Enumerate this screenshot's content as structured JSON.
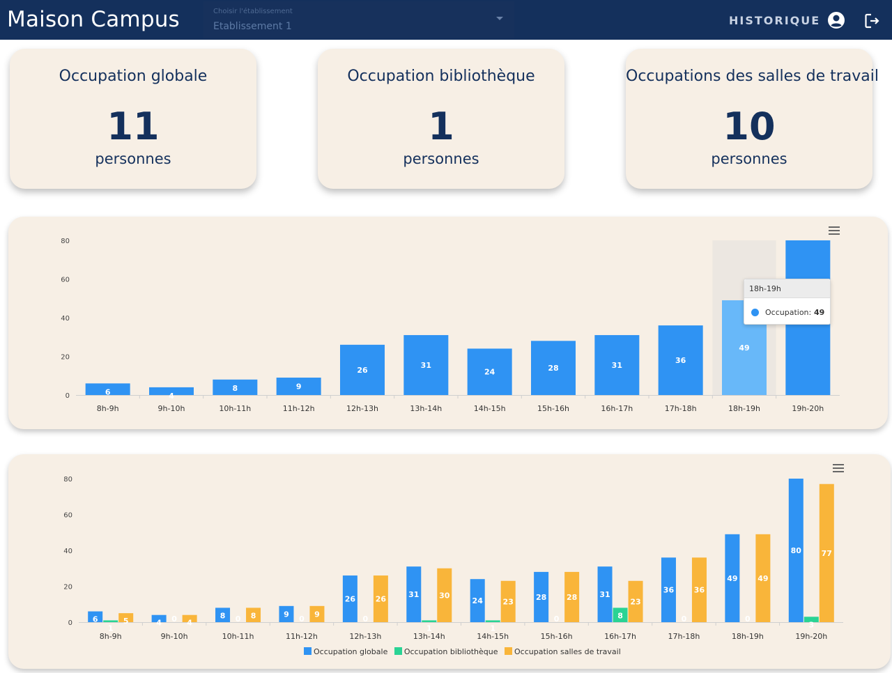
{
  "header": {
    "app_title": "Maison Campus",
    "select": {
      "label": "Choisir l'établissement",
      "value": "Etablissement 1"
    },
    "nav_history": "HISTORIQUE",
    "account_icon": "account-circle-icon",
    "logout_icon": "logout-icon"
  },
  "stats": [
    {
      "title": "Occupation globale",
      "value": "11",
      "unit": "personnes"
    },
    {
      "title": "Occupation bibliothèque",
      "value": "1",
      "unit": "personnes"
    },
    {
      "title": "Occupations des salles de travail",
      "value": "10",
      "unit": "personnes"
    }
  ],
  "colors": {
    "global": "#2f93f3",
    "library": "#2ad394",
    "rooms": "#f9b53a",
    "highlight": "#68b8f9"
  },
  "tooltip": {
    "header": "18h-19h",
    "label": "Occupation:",
    "value": "49"
  },
  "chart_data": [
    {
      "type": "bar",
      "categories": [
        "8h-9h",
        "9h-10h",
        "10h-11h",
        "11h-12h",
        "12h-13h",
        "13h-14h",
        "14h-15h",
        "15h-16h",
        "16h-17h",
        "17h-18h",
        "18h-19h",
        "19h-20h"
      ],
      "series": [
        {
          "name": "Occupation",
          "values": [
            6,
            4,
            8,
            9,
            26,
            31,
            24,
            28,
            31,
            36,
            49,
            80
          ]
        }
      ],
      "yticks": [
        0,
        20,
        40,
        60,
        80
      ],
      "ylim": [
        0,
        80
      ],
      "highlighted_category": "18h-19h",
      "grid": false
    },
    {
      "type": "bar",
      "categories": [
        "8h-9h",
        "9h-10h",
        "10h-11h",
        "11h-12h",
        "12h-13h",
        "13h-14h",
        "14h-15h",
        "15h-16h",
        "16h-17h",
        "17h-18h",
        "18h-19h",
        "19h-20h"
      ],
      "series": [
        {
          "name": "Occupation globale",
          "values": [
            6,
            4,
            8,
            9,
            26,
            31,
            24,
            28,
            31,
            36,
            49,
            80
          ]
        },
        {
          "name": "Occupation bibliothèque",
          "values": [
            1,
            0,
            0,
            0,
            0,
            1,
            1,
            0,
            8,
            0,
            0,
            3
          ]
        },
        {
          "name": "Occupation salles de travail",
          "values": [
            5,
            4,
            8,
            9,
            26,
            30,
            23,
            28,
            23,
            36,
            49,
            77
          ]
        }
      ],
      "yticks": [
        0,
        20,
        40,
        60,
        80
      ],
      "ylim": [
        0,
        80
      ],
      "legend": "bottom",
      "grid": false
    }
  ]
}
